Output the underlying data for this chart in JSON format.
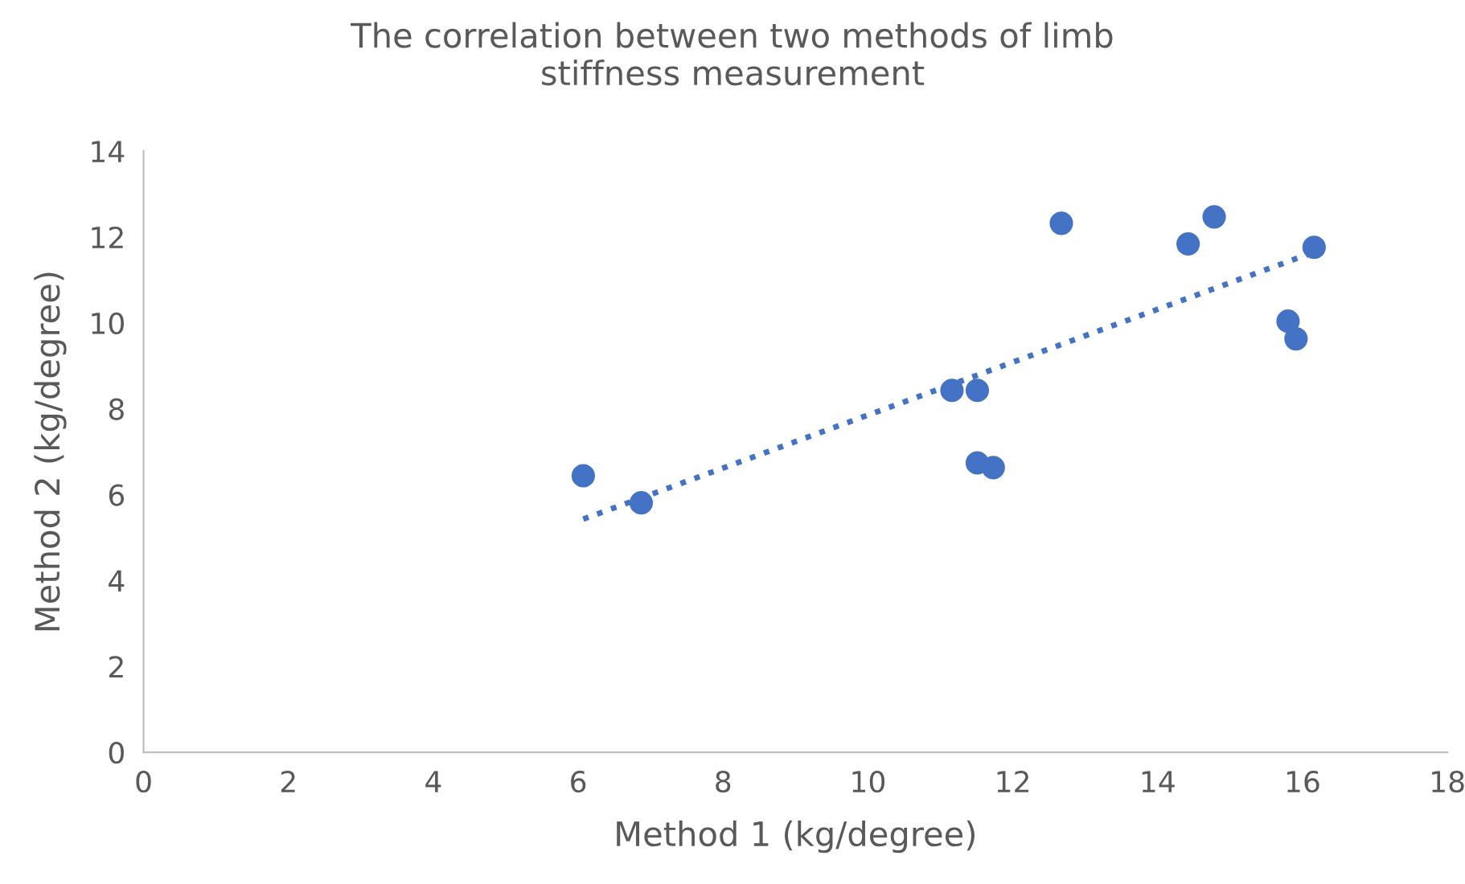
{
  "chart_data": {
    "type": "scatter",
    "title": "The correlation between two methods of limb\nstiffness measurement",
    "xlabel": "Method 1 (kg/degree)",
    "ylabel": "Method 2 (kg/degree)",
    "xlim": [
      0,
      18
    ],
    "xticks": [
      0,
      2,
      4,
      6,
      8,
      10,
      12,
      14,
      16,
      18
    ],
    "ylim": [
      0,
      14
    ],
    "yticks": [
      0,
      2,
      4,
      6,
      8,
      10,
      12,
      14
    ],
    "grid": false,
    "legend": false,
    "series": [
      {
        "marker": "circle",
        "color": "#4472c4",
        "x": [
          6.07,
          6.87,
          11.16,
          11.51,
          11.51,
          11.73,
          12.67,
          14.42,
          14.78,
          15.8,
          15.91,
          16.16
        ],
        "values": [
          6.44,
          5.81,
          8.43,
          8.43,
          6.74,
          6.63,
          12.32,
          11.84,
          12.47,
          10.04,
          9.63,
          11.76
        ]
      },
      {
        "type": "line",
        "color": "#4472c4",
        "line_style": "dotted",
        "marker": "none",
        "x": [
          6.07,
          16.16
        ],
        "values": [
          5.43,
          11.65
        ]
      }
    ]
  }
}
